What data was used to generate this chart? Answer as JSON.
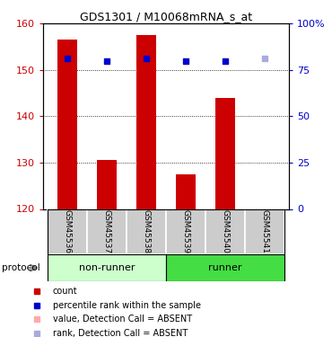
{
  "title": "GDS1301 / M10068mRNA_s_at",
  "samples": [
    "GSM45536",
    "GSM45537",
    "GSM45538",
    "GSM45539",
    "GSM45540",
    "GSM45541"
  ],
  "bar_values": [
    156.5,
    130.5,
    157.5,
    127.5,
    144.0,
    120.0
  ],
  "bar_colors": [
    "#cc0000",
    "#cc0000",
    "#cc0000",
    "#cc0000",
    "#cc0000",
    "#ffaaaa"
  ],
  "rank_values": [
    152.5,
    152.0,
    152.5,
    152.0,
    152.0,
    152.5
  ],
  "rank_colors": [
    "#0000cc",
    "#0000cc",
    "#0000cc",
    "#0000cc",
    "#0000cc",
    "#aaaadd"
  ],
  "ylim_left": [
    120,
    160
  ],
  "ylim_right": [
    0,
    100
  ],
  "yticks_left": [
    120,
    130,
    140,
    150,
    160
  ],
  "yticks_right": [
    0,
    25,
    50,
    75,
    100
  ],
  "ytick_labels_right": [
    "0",
    "25",
    "50",
    "75",
    "100%"
  ],
  "groups": [
    {
      "label": "non-runner",
      "indices": [
        0,
        1,
        2
      ],
      "color": "#ccffcc"
    },
    {
      "label": "runner",
      "indices": [
        3,
        4,
        5
      ],
      "color": "#44dd44"
    }
  ],
  "legend_items": [
    {
      "label": "count",
      "color": "#cc0000"
    },
    {
      "label": "percentile rank within the sample",
      "color": "#0000cc"
    },
    {
      "label": "value, Detection Call = ABSENT",
      "color": "#ffaaaa"
    },
    {
      "label": "rank, Detection Call = ABSENT",
      "color": "#aaaadd"
    }
  ],
  "bar_width": 0.5,
  "protocol_label": "protocol",
  "bg_color": "#ffffff",
  "tick_label_color_left": "#cc0000",
  "tick_label_color_right": "#0000cc"
}
